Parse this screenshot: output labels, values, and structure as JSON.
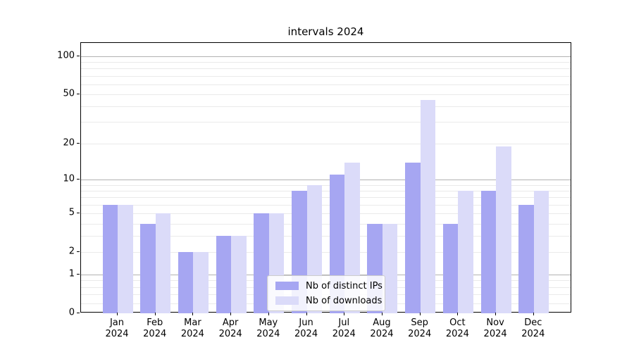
{
  "title": "intervals 2024",
  "chart_data": {
    "type": "bar",
    "title": "intervals 2024",
    "categories": [
      "Jan 2024",
      "Feb 2024",
      "Mar 2024",
      "Apr 2024",
      "May 2024",
      "Jun 2024",
      "Jul 2024",
      "Aug 2024",
      "Sep 2024",
      "Oct 2024",
      "Nov 2024",
      "Dec 2024"
    ],
    "series": [
      {
        "name": "Nb of distinct IPs",
        "color": "#a6a6f2",
        "values": [
          6,
          4,
          2,
          3,
          5,
          8,
          11,
          4,
          14,
          4,
          8,
          6
        ]
      },
      {
        "name": "Nb of downloads",
        "color": "#dbdbf9",
        "values": [
          6,
          5,
          2,
          3,
          5,
          9,
          14,
          4,
          45,
          8,
          19,
          8
        ]
      }
    ],
    "xlabel": "",
    "ylabel": "",
    "yscale": "log1p",
    "ylim": [
      0,
      127
    ],
    "yticks": [
      0,
      1,
      2,
      5,
      10,
      20,
      50,
      100
    ],
    "minor_gridlines": [
      0.2,
      0.4,
      0.6,
      0.8,
      2,
      3,
      4,
      5,
      6,
      7,
      8,
      9,
      20,
      30,
      40,
      50,
      60,
      70,
      80,
      90
    ],
    "major_gridlines": [
      1,
      10,
      100
    ],
    "grid": "on",
    "legend_position": "lower center"
  },
  "colors": {
    "distinct_ips": "#a6a6f2",
    "downloads": "#dbdbf9",
    "grid_minor": "#eaeaea",
    "grid_major": "#b2b2b2",
    "spine": "#000000",
    "text": "#000000",
    "legend_border": "#cccccc"
  }
}
